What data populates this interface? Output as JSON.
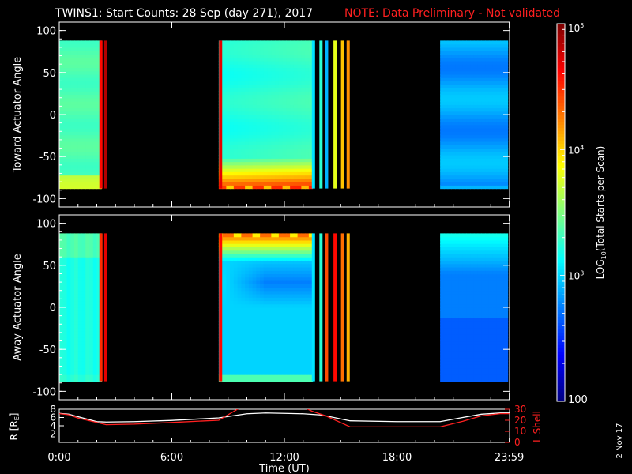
{
  "header": {
    "title": "TWINS1: Start Counts: 28 Sep (day 271), 2017",
    "note": "NOTE: Data Preliminary - Not validated"
  },
  "stamp": "2 Nov 17",
  "colors": {
    "background": "#000000",
    "frame": "#ffffff",
    "r_line": "#ffffff",
    "l_shell_line": "#ff2020",
    "note_text": "#ff2020"
  },
  "colorbar": {
    "label": "LOG10(Total Starts per Scan)",
    "label_prefix": "LOG",
    "label_sub": "10",
    "label_rest": "(Total Starts per Scan)",
    "scale": "log",
    "range": [
      100,
      100000
    ],
    "ticks": [
      {
        "value": 100,
        "text": "100"
      },
      {
        "value": 1000,
        "text": "10",
        "sup": "3"
      },
      {
        "value": 10000,
        "text": "10",
        "sup": "4"
      },
      {
        "value": 100000,
        "text": "10",
        "sup": "5"
      }
    ],
    "colormap": [
      "#00007f",
      "#0000ff",
      "#007fff",
      "#00ffff",
      "#7fff7f",
      "#ffff00",
      "#ff7f00",
      "#ff0000",
      "#7f0000"
    ]
  },
  "time_axis": {
    "label": "Time (UT)",
    "ticks": [
      "0:00",
      "6:00",
      "12:00",
      "18:00",
      "23:59"
    ],
    "tick_hours": [
      0,
      6,
      12,
      18,
      23.983
    ]
  },
  "chart_data": [
    {
      "type": "heatmap",
      "panel": "toward",
      "ylabel": "Toward Actuator Angle",
      "xlim": [
        0,
        24
      ],
      "ylim": [
        -110,
        110
      ],
      "yticks": [
        100,
        50,
        0,
        -50,
        -100
      ],
      "angle_range": [
        -88,
        88
      ],
      "segments": [
        {
          "start": 0.0,
          "end": 2.25,
          "base_log": 3.35,
          "profile": "toward_early"
        },
        {
          "start": 8.5,
          "end": 13.5,
          "base_log": 3.2,
          "profile": "toward_mid"
        },
        {
          "start": 20.3,
          "end": 23.9,
          "base_log": 2.85,
          "profile": "toward_late"
        }
      ],
      "bars": [
        {
          "hour": 2.22,
          "log": 4.6
        },
        {
          "hour": 2.48,
          "log": 4.85
        },
        {
          "hour": 8.6,
          "log": 4.7
        },
        {
          "hour": 13.55,
          "log": 3.05
        },
        {
          "hour": 13.95,
          "log": 3.25
        },
        {
          "hour": 14.25,
          "log": 2.9
        },
        {
          "hour": 14.7,
          "log": 3.8
        },
        {
          "hour": 15.1,
          "log": 4.05
        },
        {
          "hour": 15.4,
          "log": 4.2
        }
      ]
    },
    {
      "type": "heatmap",
      "panel": "away",
      "ylabel": "Away Actuator Angle",
      "xlim": [
        0,
        24
      ],
      "ylim": [
        -110,
        110
      ],
      "yticks": [
        100,
        50,
        0,
        -50,
        -100
      ],
      "angle_range": [
        -88,
        88
      ],
      "segments": [
        {
          "start": 0.0,
          "end": 2.25,
          "base_log": 3.2,
          "profile": "away_early"
        },
        {
          "start": 8.5,
          "end": 13.5,
          "base_log": 3.0,
          "profile": "away_mid"
        },
        {
          "start": 20.3,
          "end": 23.9,
          "base_log": 2.75,
          "profile": "away_late"
        }
      ],
      "bars": [
        {
          "hour": 2.22,
          "log": 4.5
        },
        {
          "hour": 2.48,
          "log": 4.7
        },
        {
          "hour": 8.6,
          "log": 4.6
        },
        {
          "hour": 13.55,
          "log": 3.05
        },
        {
          "hour": 13.95,
          "log": 3.25
        },
        {
          "hour": 14.25,
          "log": 4.4
        },
        {
          "hour": 14.7,
          "log": 4.6
        },
        {
          "hour": 15.1,
          "log": 4.3
        },
        {
          "hour": 15.4,
          "log": 4.1
        }
      ]
    },
    {
      "type": "line",
      "panel": "orbit",
      "ylabel_left": "R [RE]",
      "ylabel_left_main": "R [R",
      "ylabel_left_sub": "E",
      "ylabel_left_end": "]",
      "ylabel_right": "L Shell",
      "xlim": [
        0,
        24
      ],
      "ylim_left": [
        0,
        8
      ],
      "ylim_right": [
        0,
        30
      ],
      "yticks_left": [
        8,
        6,
        4,
        2
      ],
      "yticks_right": [
        30,
        20,
        10,
        0
      ],
      "series": [
        {
          "name": "R [RE]",
          "axis": "left",
          "x": [
            0,
            0.5,
            1.0,
            2.0,
            2.5,
            4.0,
            6.0,
            8.5,
            10.0,
            11.0,
            12.0,
            13.0,
            14.0,
            15.5,
            18.0,
            20.3,
            21.5,
            22.5,
            23.5,
            23.99
          ],
          "y": [
            7.0,
            6.8,
            6.2,
            5.0,
            4.9,
            5.0,
            5.3,
            5.9,
            6.9,
            7.1,
            7.0,
            6.9,
            6.6,
            5.2,
            5.0,
            5.0,
            6.0,
            6.8,
            7.1,
            7.1
          ]
        },
        {
          "name": "L Shell",
          "axis": "right",
          "x": [
            0,
            0.5,
            1.0,
            2.0,
            2.5,
            4.0,
            6.0,
            8.5,
            9.3,
            9.7,
            13.0,
            13.5,
            14.2,
            15.5,
            18.0,
            20.3,
            21.5,
            22.5,
            23.5,
            23.99
          ],
          "y": [
            26,
            25,
            22,
            18,
            16,
            16.5,
            18,
            20,
            28,
            32,
            32,
            28,
            24,
            14,
            14,
            14,
            19,
            24,
            26,
            26
          ]
        }
      ]
    }
  ]
}
